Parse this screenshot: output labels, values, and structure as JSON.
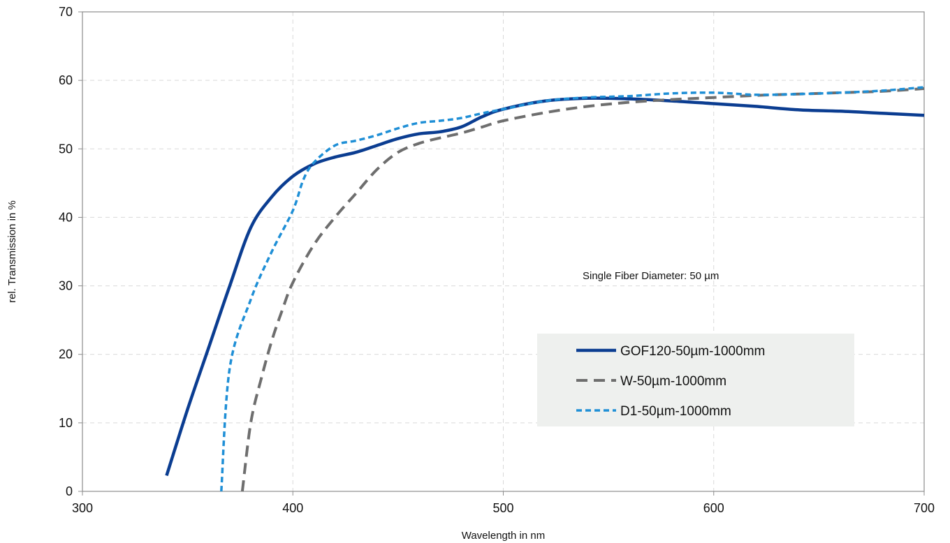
{
  "chart_data": {
    "type": "line",
    "title": "",
    "xlabel": "Wavelength in nm",
    "ylabel": "rel. Transmission in %",
    "xlim": [
      300,
      700
    ],
    "ylim": [
      0,
      70
    ],
    "x_ticks": [
      300,
      400,
      500,
      600,
      700
    ],
    "y_ticks": [
      0,
      10,
      20,
      30,
      40,
      50,
      60,
      70
    ],
    "grid": true,
    "legend_position": "lower-right",
    "annotation": "Single Fiber Diameter: 50 µm",
    "series": [
      {
        "name": "GOF120-50µm-1000mm",
        "color": "#0b3d91",
        "dash": "solid",
        "x": [
          340,
          350,
          360,
          370,
          380,
          390,
          400,
          410,
          420,
          430,
          440,
          450,
          460,
          470,
          480,
          490,
          500,
          520,
          540,
          560,
          580,
          600,
          620,
          640,
          660,
          680,
          700
        ],
        "y": [
          2.3,
          12,
          21,
          30,
          38.5,
          43,
          46,
          47.8,
          48.8,
          49.5,
          50.5,
          51.5,
          52.2,
          52.5,
          53.2,
          54.7,
          55.8,
          57,
          57.4,
          57.3,
          57,
          56.6,
          56.2,
          55.7,
          55.5,
          55.2,
          54.9
        ]
      },
      {
        "name": "W-50µm-1000mm",
        "color": "#6e6e6e",
        "dash": "long-dash",
        "x": [
          376,
          380,
          385,
          390,
          395,
          400,
          410,
          420,
          430,
          440,
          450,
          460,
          470,
          480,
          490,
          500,
          520,
          540,
          560,
          580,
          600,
          620,
          640,
          660,
          680,
          700
        ],
        "y": [
          0,
          10,
          16.5,
          22,
          26.5,
          30.5,
          36,
          40,
          43.5,
          47,
          49.5,
          50.8,
          51.6,
          52.3,
          53.2,
          54.1,
          55.3,
          56.2,
          56.8,
          57.2,
          57.5,
          57.8,
          58,
          58.2,
          58.4,
          58.8
        ]
      },
      {
        "name": "D1-50µm-1000mm",
        "color": "#1f8fd6",
        "dash": "short-dash",
        "x": [
          366,
          370,
          380,
          390,
          400,
          405,
          410,
          420,
          430,
          440,
          450,
          460,
          470,
          480,
          490,
          500,
          520,
          540,
          560,
          580,
          600,
          620,
          640,
          660,
          680,
          700
        ],
        "y": [
          0,
          18,
          28,
          35,
          41,
          45.5,
          48,
          50.5,
          51.2,
          52,
          53,
          53.8,
          54.1,
          54.5,
          55.2,
          55.8,
          57,
          57.5,
          57.7,
          58.1,
          58.2,
          57.9,
          58,
          58.2,
          58.5,
          59
        ]
      }
    ]
  }
}
